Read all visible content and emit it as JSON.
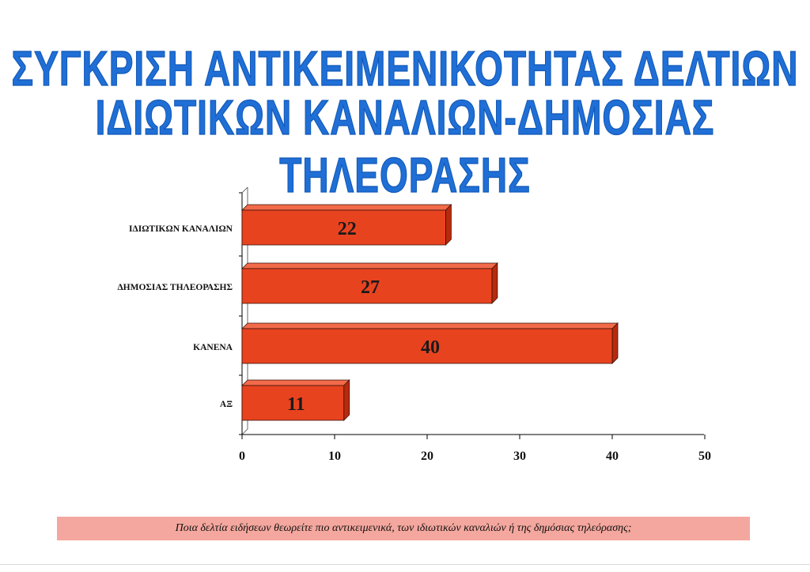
{
  "title": {
    "line1": "ΣΥΓΚΡΙΣΗ ΑΝΤΙΚΕΙΜΕΝΙΚΟΤΗΤΑΣ ΔΕΛΤΙΩΝ",
    "line2": "ΙΔΙΩΤΙΚΩΝ ΚΑΝΑΛΙΩΝ-ΔΗΜΟΣΙΑΣ ΤΗΛΕΟΡΑΣΗΣ"
  },
  "caption": "Ποια δελτία ειδήσεων θεωρείτε πιο αντικειμενικά, των ιδιωτικών καναλιών ή της δημόσιας τηλεόρασης;",
  "colors": {
    "title": "#1f6fd6",
    "bar_front": "#e8431f",
    "bar_top": "#f26a4a",
    "bar_side": "#b82a0e",
    "caption_bg": "#f4a79e"
  },
  "chart_data": {
    "type": "bar",
    "orientation": "horizontal",
    "categories": [
      "ΙΔΙΩΤΙΚΩΝ ΚΑΝΑΛΙΩΝ",
      "ΔΗΜΟΣΙΑΣ ΤΗΛΕΟΡΑΣΗΣ",
      "ΚΑΝΕΝΑ",
      "ΑΞ"
    ],
    "values": [
      22,
      27,
      40,
      11
    ],
    "data_labels": [
      "22",
      "27",
      "40",
      "11"
    ],
    "xlim": [
      0,
      50
    ],
    "xticks": [
      "0",
      "10",
      "20",
      "30",
      "40",
      "50"
    ],
    "grid": false
  }
}
